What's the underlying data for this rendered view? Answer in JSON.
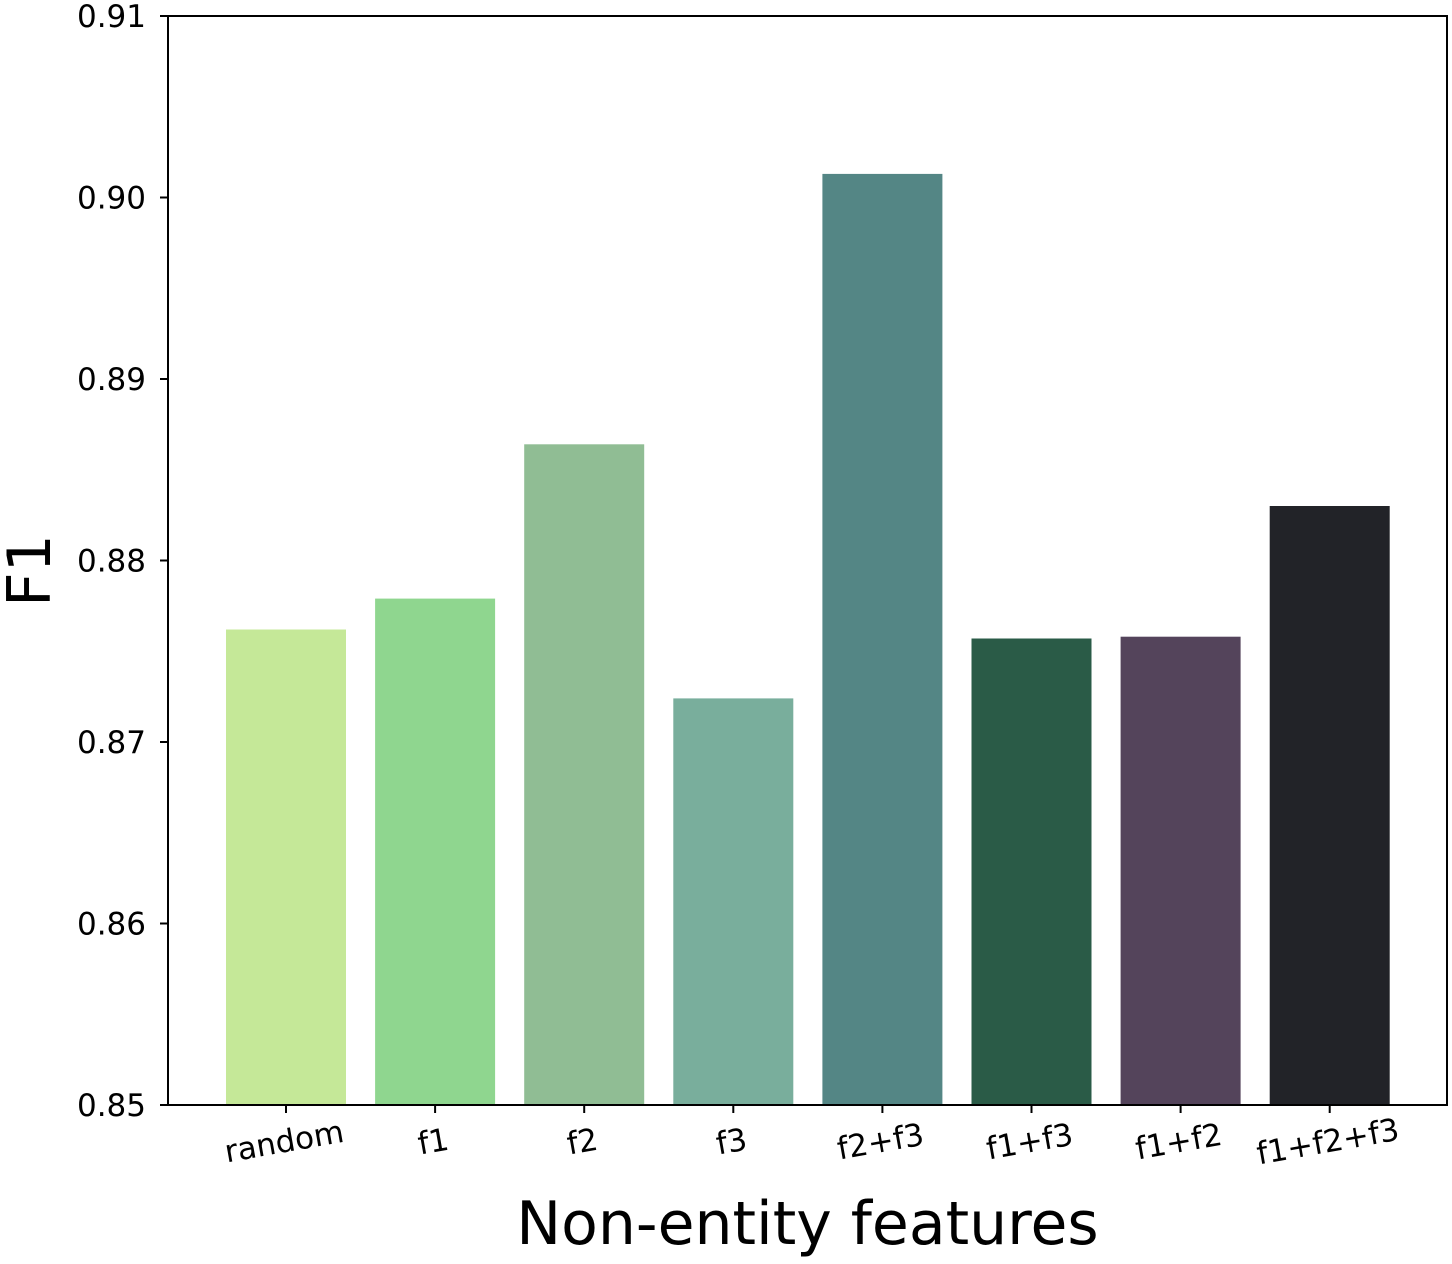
{
  "chart_data": {
    "type": "bar",
    "title": "",
    "xlabel": "Non-entity features",
    "ylabel": "F1",
    "ylim": [
      0.85,
      0.91
    ],
    "yticks": [
      0.85,
      0.86,
      0.87,
      0.88,
      0.89,
      0.9,
      0.91
    ],
    "ytick_labels": [
      "0.85",
      "0.86",
      "0.87",
      "0.88",
      "0.89",
      "0.90",
      "0.91"
    ],
    "categories": [
      "random",
      "f1",
      "f2",
      "f3",
      "f2+f3",
      "f1+f3",
      "f1+f2",
      "f1+f2+f3"
    ],
    "values": [
      0.8762,
      0.8779,
      0.8864,
      0.8724,
      0.9013,
      0.8757,
      0.8758,
      0.883
    ],
    "colors": [
      "#c5e898",
      "#8fd68f",
      "#90bd94",
      "#79ae9c",
      "#548685",
      "#2a5b47",
      "#54445b",
      "#222328"
    ],
    "grid": false,
    "legend": "none"
  }
}
